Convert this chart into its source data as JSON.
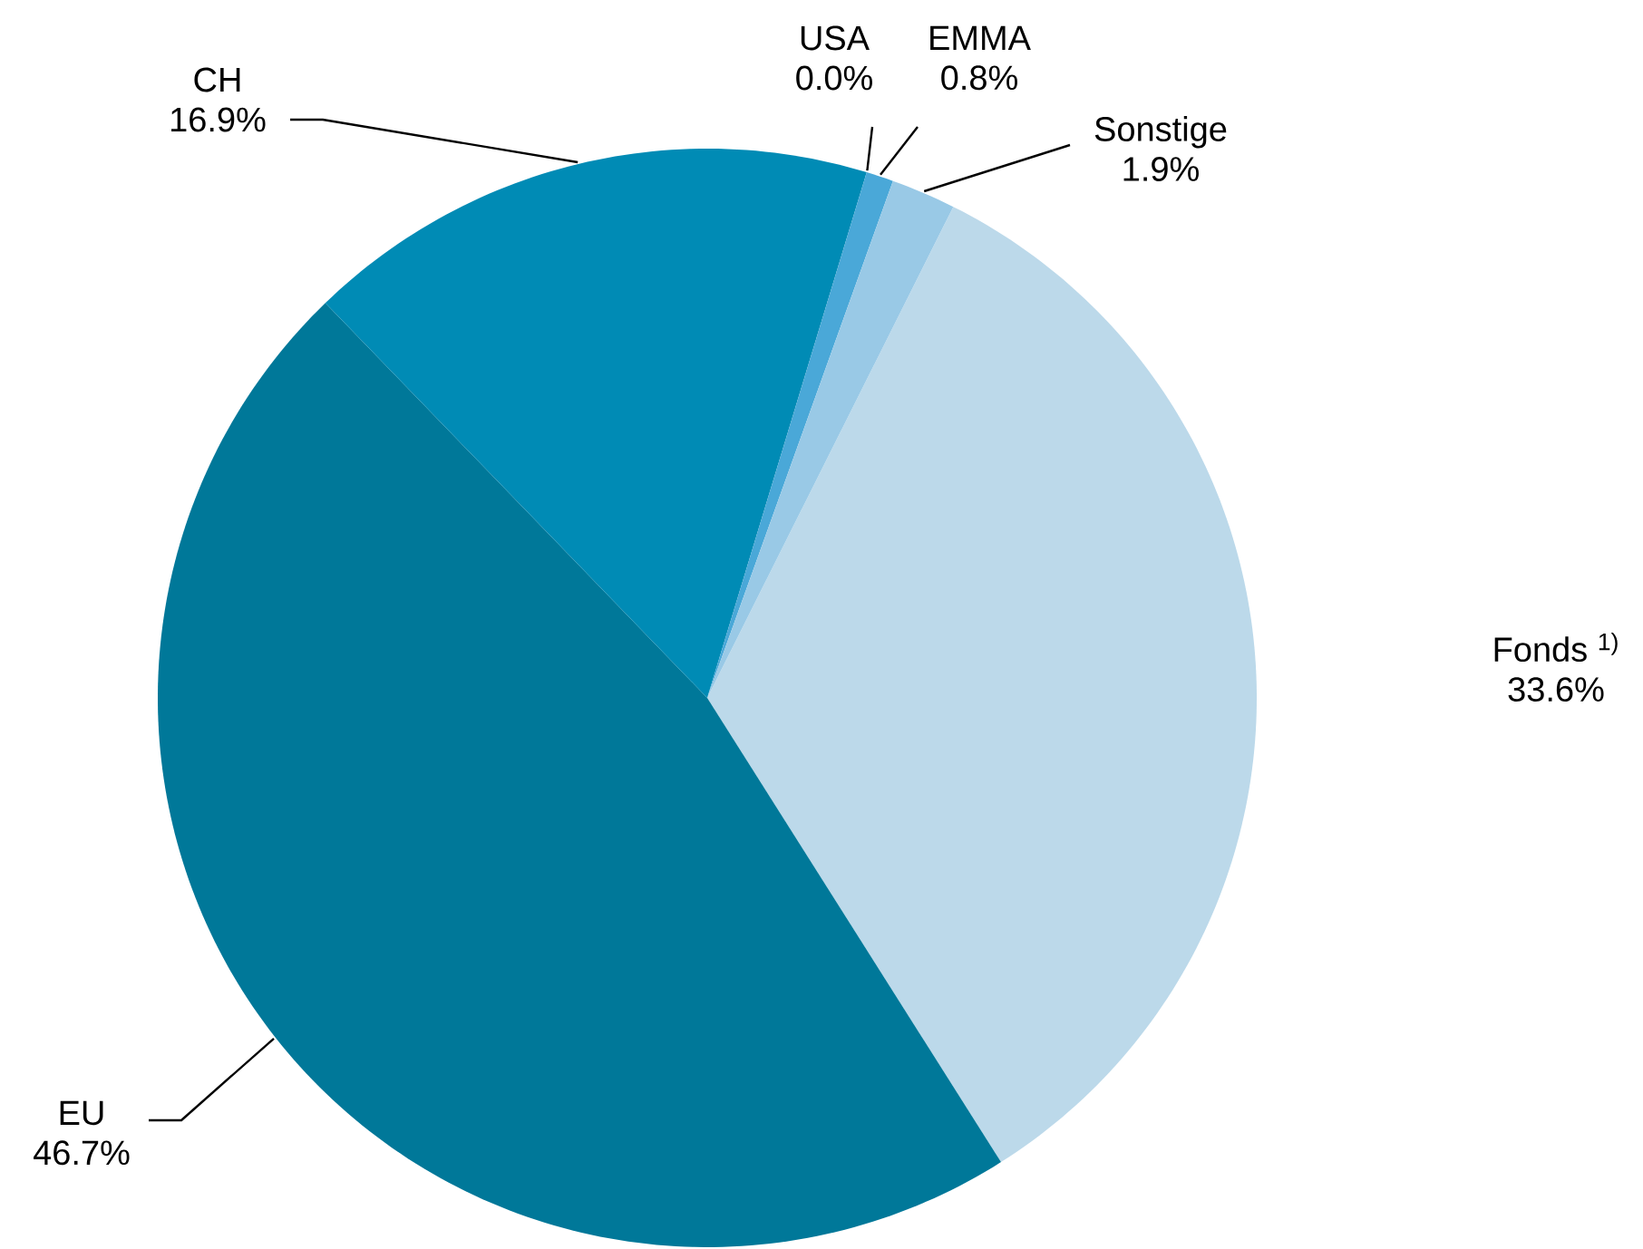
{
  "chart_data": {
    "type": "pie",
    "categories": [
      "Fonds $^{1)}$",
      "EU",
      "CH",
      "USA",
      "EMMA",
      "Sonstige"
    ],
    "values": [
      33.6,
      46.7,
      16.9,
      0.0,
      0.8,
      1.9
    ],
    "value_labels": [
      "33.6%",
      "46.7%",
      "16.9%",
      "0.0%",
      "0.8%",
      "1.9%"
    ],
    "colors": [
      "#bcd9ea",
      "#007899",
      "#008bb5",
      "#3fa0d0",
      "#4aa8d8",
      "#99c9e6"
    ]
  }
}
